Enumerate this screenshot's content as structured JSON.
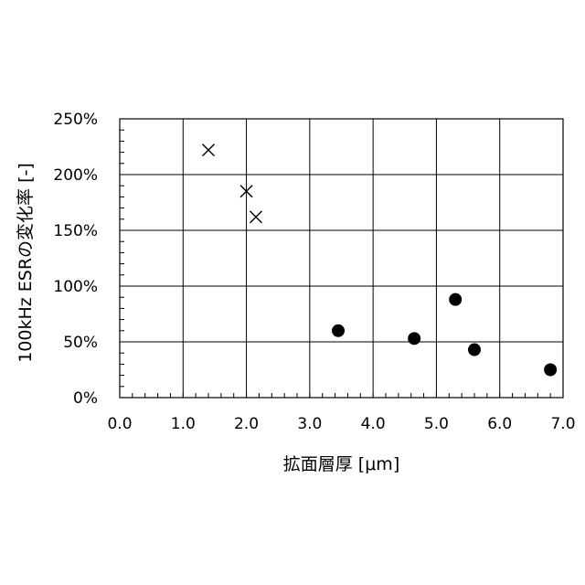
{
  "chart_data": {
    "type": "scatter",
    "xlabel": "拡面層厚 [μm]",
    "ylabel": "100kHz ESRの変化率 [-]",
    "xlim": [
      0,
      7
    ],
    "ylim": [
      0,
      250
    ],
    "x_ticks": [
      0,
      1,
      2,
      3,
      4,
      5,
      6,
      7
    ],
    "x_tick_labels": [
      "0.0",
      "1.0",
      "2.0",
      "3.0",
      "4.0",
      "5.0",
      "6.0",
      "7.0"
    ],
    "y_ticks": [
      0,
      50,
      100,
      150,
      200,
      250
    ],
    "y_tick_labels": [
      "0%",
      "50%",
      "100%",
      "150%",
      "200%",
      "250%"
    ],
    "x_minor_step": 0.2,
    "y_minor_step": 10,
    "grid": true,
    "legend": "none",
    "series": [
      {
        "marker": "cross",
        "color": "#000000",
        "points": [
          {
            "x": 1.4,
            "y": 222
          },
          {
            "x": 2.0,
            "y": 185
          },
          {
            "x": 2.15,
            "y": 162
          }
        ]
      },
      {
        "marker": "filled-circle",
        "color": "#000000",
        "points": [
          {
            "x": 3.45,
            "y": 60
          },
          {
            "x": 4.65,
            "y": 53
          },
          {
            "x": 5.3,
            "y": 88
          },
          {
            "x": 5.6,
            "y": 43
          },
          {
            "x": 6.8,
            "y": 25
          }
        ]
      }
    ]
  }
}
